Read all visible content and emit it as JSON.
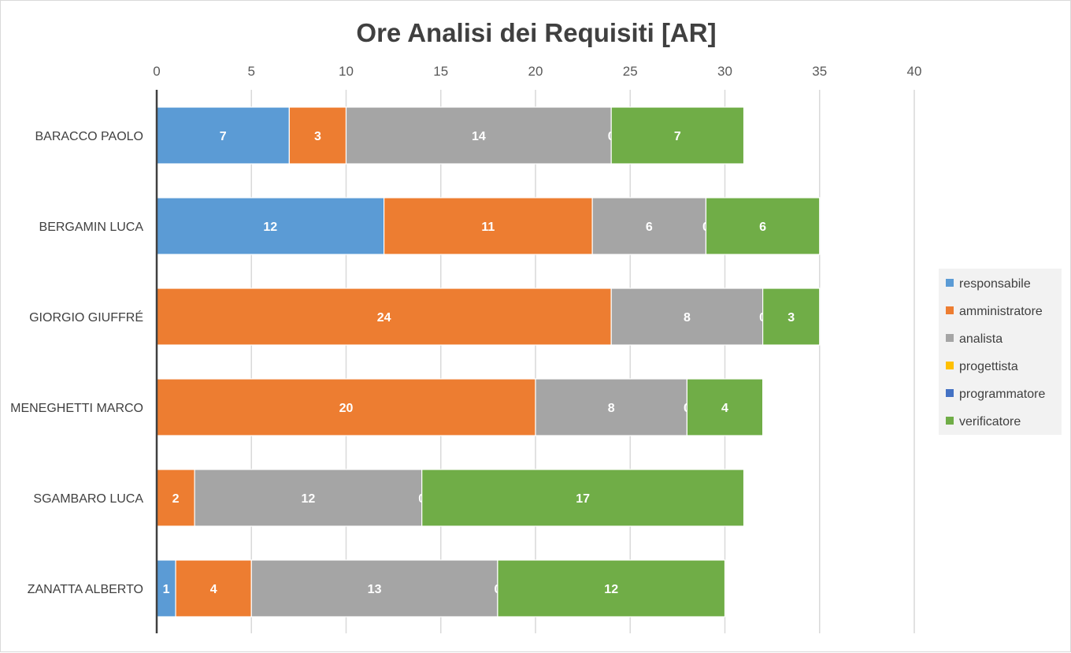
{
  "chart_data": {
    "type": "bar",
    "orientation": "horizontal",
    "stacked": true,
    "title": "Ore Analisi dei Requisiti [AR]",
    "xlim": [
      0,
      40
    ],
    "x_ticks": [
      "0",
      "5",
      "10",
      "15",
      "20",
      "25",
      "30",
      "35",
      "40"
    ],
    "x_tick_values": [
      0,
      5,
      10,
      15,
      20,
      25,
      30,
      35,
      40
    ],
    "grid": true,
    "legend_position": "right",
    "categories": [
      "BARACCO PAOLO",
      "BERGAMIN LUCA",
      "GIORGIO GIUFFRÉ",
      "MENEGHETTI MARCO",
      "SGAMBARO LUCA",
      "ZANATTA ALBERTO"
    ],
    "series": [
      {
        "name": "responsabile",
        "color": "#5b9bd5",
        "values": [
          7,
          12,
          0,
          0,
          0,
          1
        ]
      },
      {
        "name": "amministratore",
        "color": "#ed7d31",
        "values": [
          3,
          11,
          24,
          20,
          2,
          4
        ]
      },
      {
        "name": "analista",
        "color": "#a5a5a5",
        "values": [
          14,
          6,
          8,
          8,
          12,
          13
        ]
      },
      {
        "name": "progettista",
        "color": "#ffc000",
        "values": [
          0,
          0,
          0,
          0,
          0,
          0
        ]
      },
      {
        "name": "programmatore",
        "color": "#4472c4",
        "values": [
          0,
          0,
          0,
          0,
          0,
          0
        ]
      },
      {
        "name": "verificatore",
        "color": "#70ad47",
        "values": [
          7,
          6,
          3,
          4,
          17,
          12
        ]
      }
    ],
    "data_labels_shown": [
      [
        true,
        true,
        true,
        false,
        true,
        true
      ],
      [
        true,
        true,
        true,
        false,
        true,
        true
      ],
      [
        true,
        true,
        true,
        false,
        true,
        true
      ],
      [
        true,
        true,
        true,
        false,
        true,
        true
      ],
      [
        true,
        true,
        true,
        false,
        true,
        true
      ],
      [
        true,
        true,
        true,
        false,
        true,
        true
      ]
    ]
  }
}
